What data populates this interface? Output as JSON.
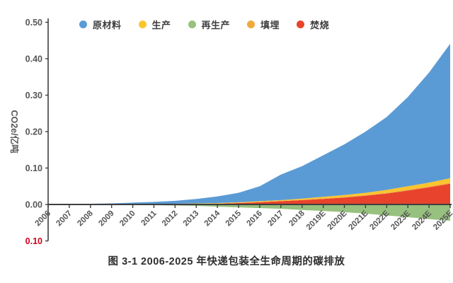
{
  "caption": {
    "text": "图 3-1 2006-2025 年快递包装全生命周期的碳排放"
  },
  "chart_data": {
    "type": "area",
    "stacked": true,
    "title": "图 3-1 2006-2025 年快递包装全生命周期的碳排放",
    "xlabel": "",
    "ylabel": "CO2e/亿吨",
    "ylim": [
      -0.1,
      0.5
    ],
    "grid": false,
    "legend_position": "top",
    "x": [
      "2006",
      "2007",
      "2008",
      "2009",
      "2010",
      "2011",
      "2012",
      "2013",
      "2014",
      "2015",
      "2016",
      "2017",
      "2018",
      "2019E",
      "2020E",
      "2021E",
      "2022E",
      "2023E",
      "2024E",
      "2025E"
    ],
    "series": [
      {
        "id": "raw-material",
        "name": "原材料",
        "color": "#5B9BD5",
        "values": [
          0.001,
          0.0015,
          0.002,
          0.003,
          0.004,
          0.006,
          0.008,
          0.012,
          0.018,
          0.026,
          0.041,
          0.07,
          0.089,
          0.114,
          0.139,
          0.168,
          0.2,
          0.245,
          0.302,
          0.369
        ]
      },
      {
        "id": "production",
        "name": "生产",
        "color": "#FBC52C",
        "values": [
          0.0,
          0.0,
          0.0,
          0.0,
          0.0,
          0.0,
          0.001,
          0.001,
          0.001,
          0.001,
          0.002,
          0.002,
          0.003,
          0.004,
          0.005,
          0.006,
          0.008,
          0.009,
          0.01,
          0.012
        ]
      },
      {
        "id": "reproduction",
        "name": "再生产",
        "color": "#97C17E",
        "values": [
          0.0,
          -0.001,
          -0.001,
          -0.001,
          -0.002,
          -0.002,
          -0.003,
          -0.004,
          -0.006,
          -0.008,
          -0.01,
          -0.012,
          -0.015,
          -0.018,
          -0.021,
          -0.025,
          -0.03,
          -0.035,
          -0.04,
          -0.045
        ]
      },
      {
        "id": "landfill",
        "name": "填埋",
        "color": "#F2A93B",
        "values": [
          0.0,
          0.0,
          0.0,
          0.0,
          0.0,
          0.0,
          0.0,
          0.0,
          0.001,
          0.001,
          0.001,
          0.001,
          0.001,
          0.002,
          0.002,
          0.002,
          0.002,
          0.003,
          0.003,
          0.003
        ]
      },
      {
        "id": "incineration",
        "name": "焚烧",
        "color": "#E8432C",
        "values": [
          0.0,
          0.0,
          0.0,
          0.0,
          0.001,
          0.001,
          0.001,
          0.002,
          0.002,
          0.004,
          0.006,
          0.009,
          0.012,
          0.015,
          0.019,
          0.024,
          0.03,
          0.038,
          0.047,
          0.057
        ]
      }
    ],
    "stacking": {
      "above": [
        "incineration",
        "landfill",
        "production",
        "raw-material"
      ],
      "below": [
        "reproduction"
      ]
    },
    "y_ticks": [
      {
        "label": "0.50",
        "value": 0.5
      },
      {
        "label": "0.40",
        "value": 0.4
      },
      {
        "label": "0.30",
        "value": 0.3
      },
      {
        "label": "0.20",
        "value": 0.2
      },
      {
        "label": "0.10",
        "value": 0.1
      },
      {
        "label": "0.00",
        "value": 0.0
      },
      {
        "label": "0.10",
        "value": -0.1,
        "negative_red": true
      }
    ],
    "colors": {
      "axis": "#3f3f3f",
      "tick_label": "#575757",
      "negative_tick_label": "#D0021B"
    }
  }
}
